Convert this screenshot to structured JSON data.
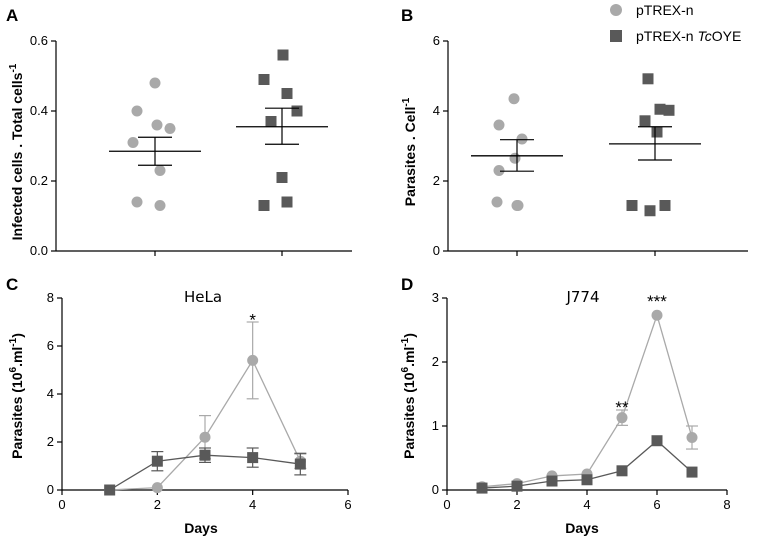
{
  "legend": {
    "items": [
      {
        "label": "pTREX-n",
        "marker": "circle",
        "color": "#a9a9a9"
      },
      {
        "label_pre": "pTREX-n ",
        "label_italic": "Tc",
        "label_post": "OYE",
        "marker": "square",
        "color": "#595959"
      }
    ]
  },
  "chart_data": [
    {
      "panel": "A",
      "type": "scatter",
      "categories": [
        "pTREX-n",
        "pTREX-n TcOYE"
      ],
      "ylabel_main": "Infected cells . Total cells",
      "ylabel_sup": "-1",
      "ylim": [
        0,
        0.6
      ],
      "yticks": [
        0.0,
        0.2,
        0.4,
        0.6
      ],
      "ytick_labels": [
        "0.0",
        "0.2",
        "0.4",
        "0.6"
      ],
      "series": [
        {
          "name": "pTREX-n",
          "values": [
            0.48,
            0.4,
            0.36,
            0.35,
            0.31,
            0.23,
            0.14,
            0.13
          ],
          "mean": 0.285,
          "sem_low": 0.245,
          "sem_high": 0.325
        },
        {
          "name": "pTREX-n TcOYE",
          "values": [
            0.56,
            0.49,
            0.45,
            0.4,
            0.37,
            0.21,
            0.14,
            0.13
          ],
          "mean": 0.355,
          "sem_low": 0.305,
          "sem_high": 0.408
        }
      ]
    },
    {
      "panel": "B",
      "type": "scatter",
      "categories": [
        "pTREX-n",
        "pTREX-n TcOYE"
      ],
      "ylabel_main": "Parasites . Cell",
      "ylabel_sup": "-1",
      "ylim": [
        0,
        6
      ],
      "yticks": [
        0,
        2,
        4,
        6
      ],
      "ytick_labels": [
        "0",
        "2",
        "4",
        "6"
      ],
      "series": [
        {
          "name": "pTREX-n",
          "values": [
            4.35,
            3.6,
            3.2,
            2.65,
            2.3,
            1.4,
            1.3,
            1.3
          ],
          "mean": 2.72,
          "sem_low": 2.28,
          "sem_high": 3.18
        },
        {
          "name": "pTREX-n TcOYE",
          "values": [
            4.92,
            4.05,
            4.02,
            3.72,
            3.4,
            1.3,
            1.3,
            1.15
          ],
          "mean": 3.06,
          "sem_low": 2.6,
          "sem_high": 3.55
        }
      ]
    },
    {
      "panel": "C",
      "type": "line",
      "title": "HeLa",
      "xlabel": "Days",
      "ylabel_main": "Parasites  (10",
      "ylabel_sup1": "6",
      "ylabel_mid": ".ml",
      "ylabel_sup2": "-1",
      "ylabel_end": ")",
      "xlim": [
        0,
        6
      ],
      "ylim": [
        0,
        8
      ],
      "xticks": [
        0,
        2,
        4,
        6
      ],
      "xtick_labels": [
        "0",
        "2",
        "4",
        "6"
      ],
      "yticks": [
        0,
        2,
        4,
        6,
        8
      ],
      "ytick_labels": [
        "0",
        "2",
        "4",
        "6",
        "8"
      ],
      "series": [
        {
          "name": "pTREX-n",
          "x": [
            1,
            2,
            3,
            4,
            5
          ],
          "y": [
            0.0,
            0.1,
            2.2,
            5.4,
            1.2
          ],
          "err": [
            0,
            0,
            0.9,
            1.6,
            0.3
          ]
        },
        {
          "name": "pTREX-n TcOYE",
          "x": [
            1,
            2,
            3,
            4,
            5
          ],
          "y": [
            0.0,
            1.2,
            1.45,
            1.35,
            1.08
          ],
          "err": [
            0,
            0.4,
            0.3,
            0.4,
            0.45
          ]
        }
      ],
      "annotations": [
        {
          "x": 4,
          "y": 7.1,
          "text": "*"
        }
      ]
    },
    {
      "panel": "D",
      "type": "line",
      "title": "J774",
      "xlabel": "Days",
      "ylabel_main": "Parasites  (10",
      "ylabel_sup1": "6",
      "ylabel_mid": ".ml",
      "ylabel_sup2": "-1",
      "ylabel_end": ")",
      "xlim": [
        0,
        8
      ],
      "ylim": [
        0,
        3
      ],
      "xticks": [
        0,
        2,
        4,
        6,
        8
      ],
      "xtick_labels": [
        "0",
        "2",
        "4",
        "6",
        "8"
      ],
      "yticks": [
        0,
        1,
        2,
        3
      ],
      "ytick_labels": [
        "0",
        "1",
        "2",
        "3"
      ],
      "series": [
        {
          "name": "pTREX-n",
          "x": [
            1,
            2,
            3,
            4,
            5,
            6,
            7
          ],
          "y": [
            0.05,
            0.1,
            0.22,
            0.25,
            1.13,
            2.73,
            0.82
          ],
          "err": [
            0,
            0,
            0,
            0,
            0.12,
            0,
            0.18
          ]
        },
        {
          "name": "pTREX-n TcOYE",
          "x": [
            1,
            2,
            3,
            4,
            5,
            6,
            7
          ],
          "y": [
            0.03,
            0.06,
            0.14,
            0.16,
            0.3,
            0.77,
            0.28
          ],
          "err": [
            0,
            0,
            0,
            0,
            0,
            0,
            0
          ]
        }
      ],
      "annotations": [
        {
          "x": 5,
          "y": 1.3,
          "text": "**"
        },
        {
          "x": 6,
          "y": 2.95,
          "text": "***"
        }
      ]
    }
  ]
}
